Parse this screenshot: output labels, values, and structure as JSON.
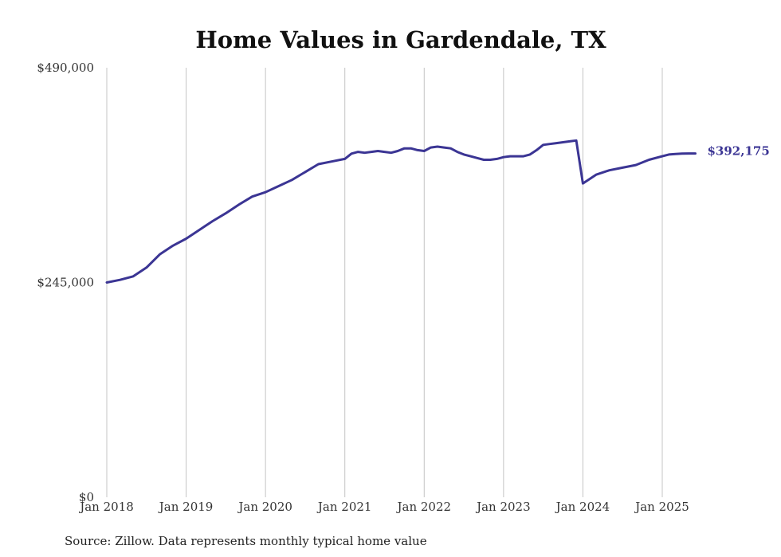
{
  "chart_data": {
    "type": "line",
    "title": "Home Values in Gardendale, TX",
    "xlabel": "",
    "ylabel": "",
    "ylim": [
      0,
      490000
    ],
    "y_ticks": [
      "$490,000",
      "$245,000",
      "$0"
    ],
    "y_tick_values": [
      490000,
      245000,
      0
    ],
    "x_ticks": [
      "Jan 2018",
      "Jan 2019",
      "Jan 2020",
      "Jan 2021",
      "Jan 2022",
      "Jan 2023",
      "Jan 2024",
      "Jan 2025"
    ],
    "x_tick_dates": [
      "2018-01",
      "2019-01",
      "2020-01",
      "2021-01",
      "2022-01",
      "2023-01",
      "2024-01",
      "2025-01"
    ],
    "grid": "vertical",
    "line_color": "#3b3594",
    "end_label": "$392,175",
    "series": [
      {
        "x": [
          "2018-01",
          "2018-03",
          "2018-05",
          "2018-07",
          "2018-09",
          "2018-11",
          "2019-01",
          "2019-03",
          "2019-05",
          "2019-07",
          "2019-09",
          "2019-11",
          "2020-01",
          "2020-03",
          "2020-05",
          "2020-07",
          "2020-09",
          "2020-11",
          "2021-01",
          "2021-02",
          "2021-03",
          "2021-04",
          "2021-05",
          "2021-06",
          "2021-07",
          "2021-08",
          "2021-09",
          "2021-10",
          "2021-11",
          "2021-12",
          "2022-01",
          "2022-02",
          "2022-03",
          "2022-04",
          "2022-05",
          "2022-06",
          "2022-07",
          "2022-08",
          "2022-09",
          "2022-10",
          "2022-11",
          "2022-12",
          "2023-01",
          "2023-02",
          "2023-03",
          "2023-04",
          "2023-05",
          "2023-06",
          "2023-07",
          "2023-08",
          "2023-09",
          "2023-10",
          "2023-11",
          "2023-12",
          "2024-01",
          "2024-03",
          "2024-05",
          "2024-07",
          "2024-09",
          "2024-11",
          "2025-01",
          "2025-02",
          "2025-03",
          "2025-04",
          "2025-05",
          "2025-06"
        ],
        "values": [
          245000,
          248000,
          252000,
          262000,
          277000,
          287000,
          295000,
          305000,
          315000,
          324000,
          334000,
          343000,
          348000,
          355000,
          362000,
          371000,
          380000,
          383000,
          386000,
          392000,
          394000,
          393000,
          394000,
          395000,
          394000,
          393000,
          395000,
          398000,
          398000,
          396000,
          395000,
          399000,
          400000,
          399000,
          398000,
          394000,
          391000,
          389000,
          387000,
          385000,
          385000,
          386000,
          388000,
          389000,
          389000,
          389000,
          391000,
          396000,
          402000,
          403000,
          404000,
          405000,
          406000,
          407000,
          358000,
          368000,
          373000,
          376000,
          379000,
          385000,
          389000,
          391000,
          391500,
          392000,
          392175,
          392175
        ]
      }
    ]
  },
  "source": "Source: Zillow. Data represents monthly typical home value"
}
